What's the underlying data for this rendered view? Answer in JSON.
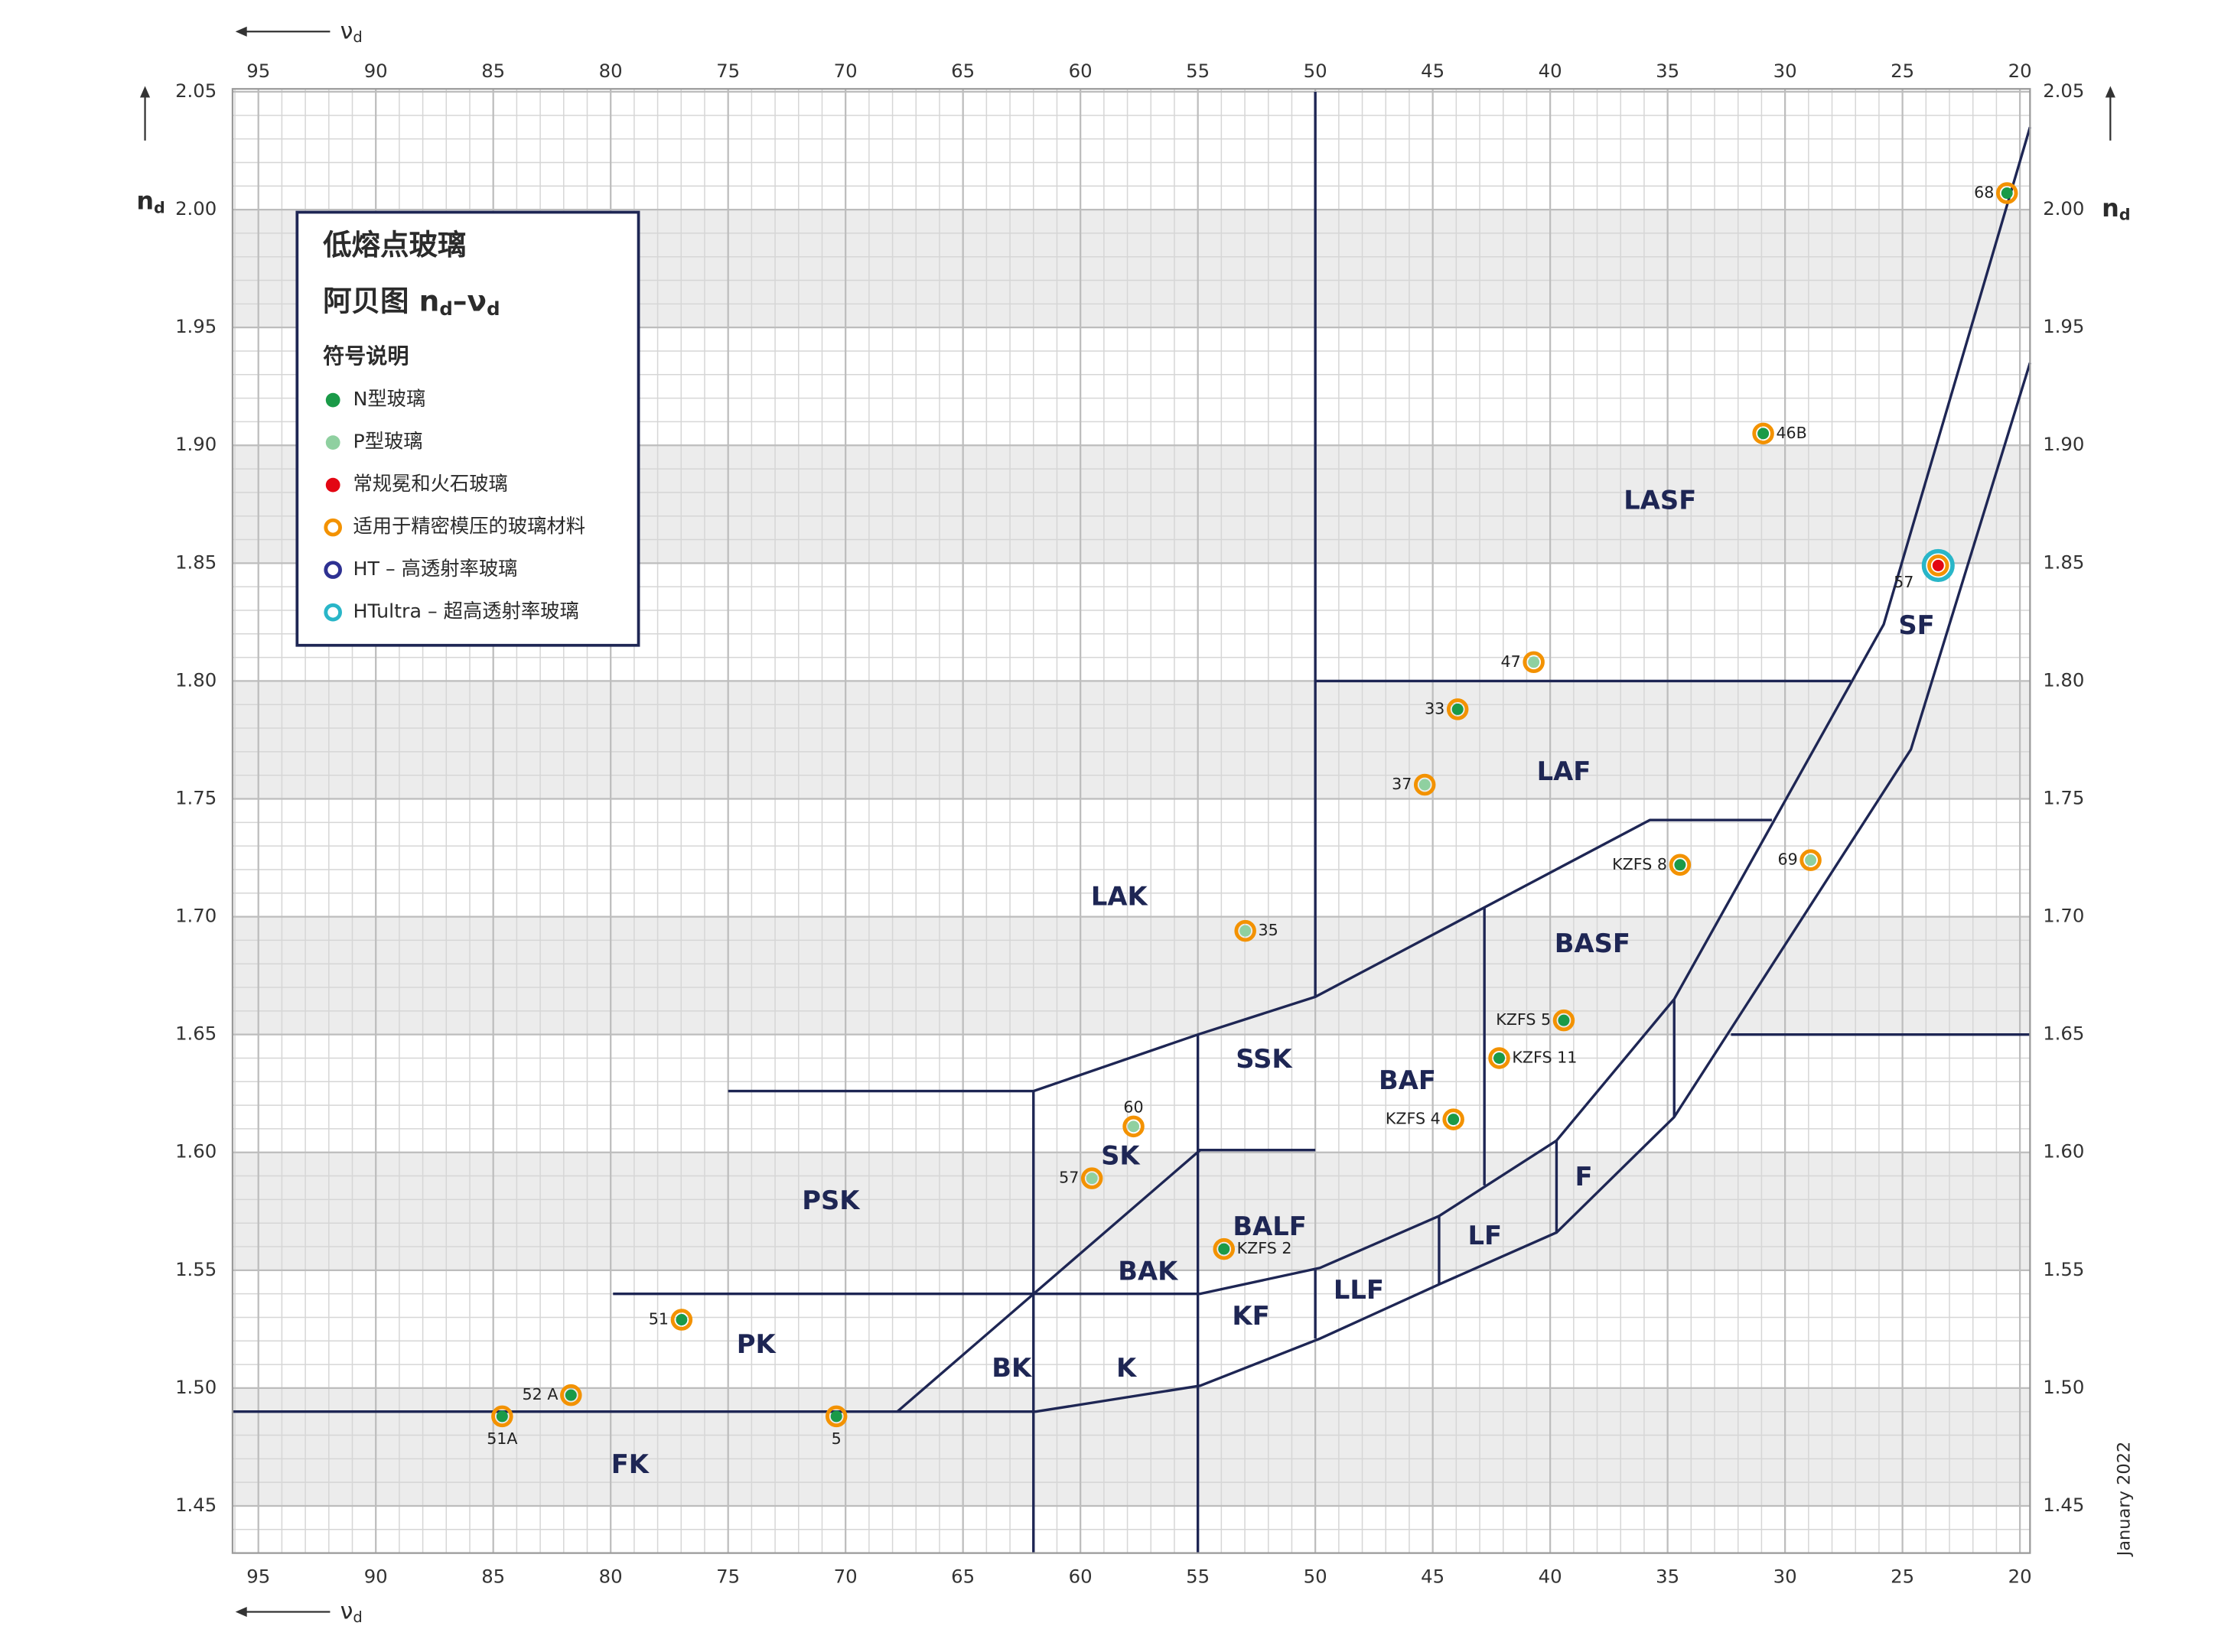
{
  "chart_data": {
    "type": "scatter",
    "title": "低熔点玻璃",
    "subtitle": [
      "阿贝图 n",
      "d",
      "–ν",
      "d"
    ],
    "x_label": [
      "ν",
      "d"
    ],
    "y_label": [
      "n",
      "d"
    ],
    "note": "January 2022",
    "xlim": [
      96.1,
      19.57
    ],
    "ylim": [
      1.43,
      2.05
    ],
    "xticks": [
      95,
      90,
      85,
      80,
      75,
      70,
      65,
      60,
      55,
      50,
      45,
      40,
      35,
      30,
      25,
      20
    ],
    "yticks": [
      1.45,
      {
        "value": 1.5,
        "label": "1.50"
      },
      1.55,
      {
        "value": 1.6,
        "label": "1.60"
      },
      1.65,
      {
        "value": 1.7,
        "label": "1.70"
      },
      1.75,
      {
        "value": 1.8,
        "label": "1.80"
      },
      1.85,
      {
        "value": 1.9,
        "label": "1.90"
      },
      1.95,
      {
        "value": 2,
        "label": "2.00"
      },
      2.05
    ],
    "minor_divisions": 5,
    "grid": true,
    "band_shading": true,
    "line_color": "#1e2654",
    "legend": {
      "title": "符号说明",
      "items": [
        {
          "key": "N",
          "label": "N型玻璃",
          "marker": "dot",
          "color": "#1a9a48"
        },
        {
          "key": "P",
          "label": "P型玻璃",
          "marker": "dot",
          "color": "#8fd0a0"
        },
        {
          "key": "C",
          "label": "常规冕和火石玻璃",
          "marker": "dot",
          "color": "#e30613"
        },
        {
          "key": "PM",
          "label": "适用于精密模压的玻璃材料",
          "marker": "ring",
          "color": "#f39200"
        },
        {
          "key": "HT",
          "label": "HT – 高透射率玻璃",
          "marker": "ring",
          "color": "#2e3192"
        },
        {
          "key": "HTU",
          "label": "HTultra – 超高透射率玻璃",
          "marker": "ring",
          "color": "#29b6c8"
        }
      ]
    },
    "points": [
      {
        "label": "68",
        "x": 20.55,
        "y": 2.007,
        "core": "N",
        "rings": [
          "PM"
        ],
        "label_pos": "left"
      },
      {
        "label": "46B",
        "x": 30.93,
        "y": 1.905,
        "core": "N",
        "rings": [
          "PM"
        ],
        "label_pos": "right"
      },
      {
        "label": "57",
        "x": 23.48,
        "y": 1.849,
        "core": "C",
        "rings": [
          "PM",
          "HTU"
        ],
        "label_pos": "left"
      },
      {
        "label": "47",
        "x": 40.7,
        "y": 1.808,
        "core": "P",
        "rings": [
          "PM"
        ],
        "label_pos": "left"
      },
      {
        "label": "33",
        "x": 43.94,
        "y": 1.788,
        "core": "N",
        "rings": [
          "PM"
        ],
        "label_pos": "left"
      },
      {
        "label": "37",
        "x": 45.34,
        "y": 1.756,
        "core": "P",
        "rings": [
          "PM"
        ],
        "label_pos": "left"
      },
      {
        "label": "KZFS 8",
        "x": 34.47,
        "y": 1.722,
        "core": "N",
        "rings": [
          "PM"
        ],
        "label_pos": "left"
      },
      {
        "label": "69",
        "x": 28.91,
        "y": 1.724,
        "core": "P",
        "rings": [
          "PM"
        ],
        "label_pos": "left"
      },
      {
        "label": "35",
        "x": 52.98,
        "y": 1.694,
        "core": "P",
        "rings": [
          "PM"
        ],
        "label_pos": "right"
      },
      {
        "label": "KZFS 5",
        "x": 39.42,
        "y": 1.656,
        "core": "N",
        "rings": [
          "PM"
        ],
        "label_pos": "left"
      },
      {
        "label": "KZFS 11",
        "x": 42.17,
        "y": 1.64,
        "core": "N",
        "rings": [
          "PM"
        ],
        "label_pos": "right"
      },
      {
        "label": "KZFS 4",
        "x": 44.12,
        "y": 1.614,
        "core": "N",
        "rings": [
          "PM"
        ],
        "label_pos": "left"
      },
      {
        "label": "60",
        "x": 57.74,
        "y": 1.611,
        "core": "P",
        "rings": [
          "PM"
        ],
        "label_pos": "above"
      },
      {
        "label": "57",
        "x": 59.51,
        "y": 1.589,
        "core": "P",
        "rings": [
          "PM"
        ],
        "label_pos": "left"
      },
      {
        "label": "KZFS 2",
        "x": 53.89,
        "y": 1.559,
        "core": "N",
        "rings": [
          "PM"
        ],
        "label_pos": "right"
      },
      {
        "label": "51",
        "x": 76.98,
        "y": 1.529,
        "core": "N",
        "rings": [
          "PM"
        ],
        "label_pos": "left"
      },
      {
        "label": "52 A",
        "x": 81.69,
        "y": 1.497,
        "core": "N",
        "rings": [
          "PM"
        ],
        "label_pos": "left"
      },
      {
        "label": "51A",
        "x": 84.62,
        "y": 1.488,
        "core": "N",
        "rings": [
          "PM"
        ],
        "label_pos": "below"
      },
      {
        "label": "5",
        "x": 70.39,
        "y": 1.488,
        "core": "N",
        "rings": [
          "PM"
        ],
        "label_pos": "below"
      }
    ],
    "boundaries": [
      {
        "x": [
          50,
          50
        ],
        "y": [
          2.05,
          1.666
        ]
      },
      {
        "x": [
          50,
          27.2
        ],
        "y": [
          1.8,
          1.8
        ]
      },
      {
        "x": [
          75,
          62,
          55,
          50,
          35.76,
          30.56
        ],
        "y": [
          1.626,
          1.626,
          1.65,
          1.666,
          1.741,
          1.741
        ]
      },
      {
        "x": [
          19.57,
          25.8,
          34.72,
          39.73,
          44.73,
          49.8,
          54.9,
          61.9,
          79.9
        ],
        "y": [
          2.035,
          1.824,
          1.665,
          1.605,
          1.573,
          1.551,
          1.54,
          1.54,
          1.54
        ]
      },
      {
        "x": [
          19.57,
          24.64,
          34.72,
          39.73,
          44.73,
          49.8,
          54.9,
          61.9,
          96.1
        ],
        "y": [
          1.935,
          1.771,
          1.615,
          1.566,
          1.544,
          1.521,
          1.501,
          1.49,
          1.49
        ]
      },
      {
        "x": [
          62,
          62
        ],
        "y": [
          1.626,
          1.43
        ]
      },
      {
        "x": [
          55,
          55
        ],
        "y": [
          1.65,
          1.43
        ]
      },
      {
        "x": [
          55,
          50
        ],
        "y": [
          1.601,
          1.601
        ]
      },
      {
        "x": [
          67.8,
          54.9
        ],
        "y": [
          1.49,
          1.601
        ]
      },
      {
        "x": [
          50,
          50
        ],
        "y": [
          1.551,
          1.521
        ]
      },
      {
        "x": [
          44.73,
          44.73
        ],
        "y": [
          1.573,
          1.544
        ]
      },
      {
        "x": [
          42.8,
          42.8
        ],
        "y": [
          1.704,
          1.586
        ]
      },
      {
        "x": [
          39.73,
          39.73
        ],
        "y": [
          1.605,
          1.566
        ]
      },
      {
        "x": [
          34.72,
          34.72
        ],
        "y": [
          1.665,
          1.615
        ]
      },
      {
        "x": [
          32.3,
          19.57
        ],
        "y": [
          1.65,
          1.65
        ]
      }
    ],
    "regions": [
      {
        "text": "LASF",
        "x": 35.32,
        "y": 1.876
      },
      {
        "text": "SF",
        "x": 24.4,
        "y": 1.823
      },
      {
        "text": "LAF",
        "x": 39.42,
        "y": 1.761
      },
      {
        "text": "LAK",
        "x": 58.35,
        "y": 1.708
      },
      {
        "text": "BASF",
        "x": 38.2,
        "y": 1.688
      },
      {
        "text": "SSK",
        "x": 52.19,
        "y": 1.639
      },
      {
        "text": "BAF",
        "x": 46.08,
        "y": 1.63
      },
      {
        "text": "SK",
        "x": 58.3,
        "y": 1.598
      },
      {
        "text": "F",
        "x": 38.57,
        "y": 1.589
      },
      {
        "text": "PSK",
        "x": 70.63,
        "y": 1.579
      },
      {
        "text": "BALF",
        "x": 51.94,
        "y": 1.568
      },
      {
        "text": "LF",
        "x": 42.78,
        "y": 1.564
      },
      {
        "text": "BAK",
        "x": 57.13,
        "y": 1.549
      },
      {
        "text": "LLF",
        "x": 48.15,
        "y": 1.541
      },
      {
        "text": "KF",
        "x": 52.74,
        "y": 1.53
      },
      {
        "text": "PK",
        "x": 73.81,
        "y": 1.518
      },
      {
        "text": "BK",
        "x": 62.93,
        "y": 1.508
      },
      {
        "text": "K",
        "x": 58.05,
        "y": 1.508
      },
      {
        "text": "FK",
        "x": 79.18,
        "y": 1.467
      }
    ]
  }
}
